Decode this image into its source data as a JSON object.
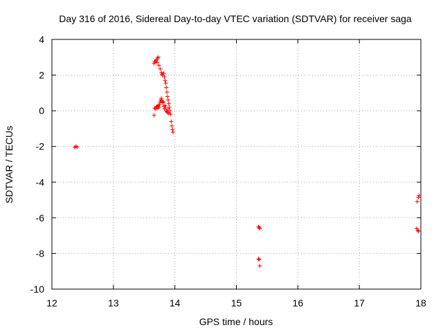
{
  "chart_data": {
    "type": "scatter",
    "title": "Day 316 of 2016, Sidereal Day-to-day VTEC variation (SDTVAR) for receiver saga",
    "xlabel": "GPS time / hours",
    "ylabel": "SDTVAR / TECUs",
    "xlim": [
      12,
      18
    ],
    "ylim": [
      -10,
      4
    ],
    "grid": true,
    "xticks": [
      12,
      13,
      14,
      15,
      16,
      17,
      18
    ],
    "yticks": [
      -10,
      -8,
      -6,
      -4,
      -2,
      0,
      2,
      4
    ],
    "marker": "+",
    "color": "#ff0000",
    "series": [
      {
        "name": "SDTVAR",
        "points": [
          [
            12.37,
            -2.05
          ],
          [
            12.39,
            -2.0
          ],
          [
            12.41,
            -2.03
          ],
          [
            13.66,
            2.65
          ],
          [
            13.67,
            2.75
          ],
          [
            13.69,
            2.8
          ],
          [
            13.7,
            2.85
          ],
          [
            13.72,
            2.95
          ],
          [
            13.73,
            3.0
          ],
          [
            13.71,
            2.7
          ],
          [
            13.74,
            2.55
          ],
          [
            13.76,
            2.35
          ],
          [
            13.78,
            2.15
          ],
          [
            13.79,
            2.05
          ],
          [
            13.8,
            2.0
          ],
          [
            13.82,
            2.1
          ],
          [
            13.83,
            1.9
          ],
          [
            13.84,
            1.7
          ],
          [
            13.85,
            1.55
          ],
          [
            13.86,
            1.3
          ],
          [
            13.87,
            1.05
          ],
          [
            13.88,
            0.8
          ],
          [
            13.89,
            0.6
          ],
          [
            13.9,
            0.4
          ],
          [
            13.91,
            0.2
          ],
          [
            13.92,
            0.0
          ],
          [
            13.93,
            -0.2
          ],
          [
            13.94,
            -0.6
          ],
          [
            13.95,
            -0.85
          ],
          [
            13.96,
            -1.05
          ],
          [
            13.97,
            -1.2
          ],
          [
            13.66,
            -0.25
          ],
          [
            13.67,
            0.15
          ],
          [
            13.69,
            0.1
          ],
          [
            13.7,
            0.2
          ],
          [
            13.71,
            0.25
          ],
          [
            13.72,
            0.15
          ],
          [
            13.73,
            0.3
          ],
          [
            13.74,
            0.2
          ],
          [
            13.75,
            0.35
          ],
          [
            13.76,
            0.5
          ],
          [
            13.77,
            0.6
          ],
          [
            13.78,
            0.7
          ],
          [
            13.79,
            0.55
          ],
          [
            13.8,
            0.45
          ],
          [
            13.81,
            0.5
          ],
          [
            13.82,
            0.25
          ],
          [
            13.83,
            0.1
          ],
          [
            13.84,
            0.3
          ],
          [
            13.85,
            0.2
          ],
          [
            13.86,
            0.0
          ],
          [
            13.87,
            -0.05
          ],
          [
            13.88,
            -0.1
          ],
          [
            13.89,
            0.1
          ],
          [
            13.9,
            -0.15
          ],
          [
            15.36,
            -6.5
          ],
          [
            15.37,
            -6.55
          ],
          [
            15.38,
            -6.6
          ],
          [
            15.36,
            -8.3
          ],
          [
            15.37,
            -8.35
          ],
          [
            15.38,
            -8.7
          ],
          [
            17.93,
            -6.6
          ],
          [
            17.95,
            -6.7
          ],
          [
            17.96,
            -6.75
          ],
          [
            17.94,
            -5.1
          ],
          [
            17.96,
            -4.85
          ],
          [
            17.97,
            -4.75
          ]
        ]
      }
    ]
  }
}
